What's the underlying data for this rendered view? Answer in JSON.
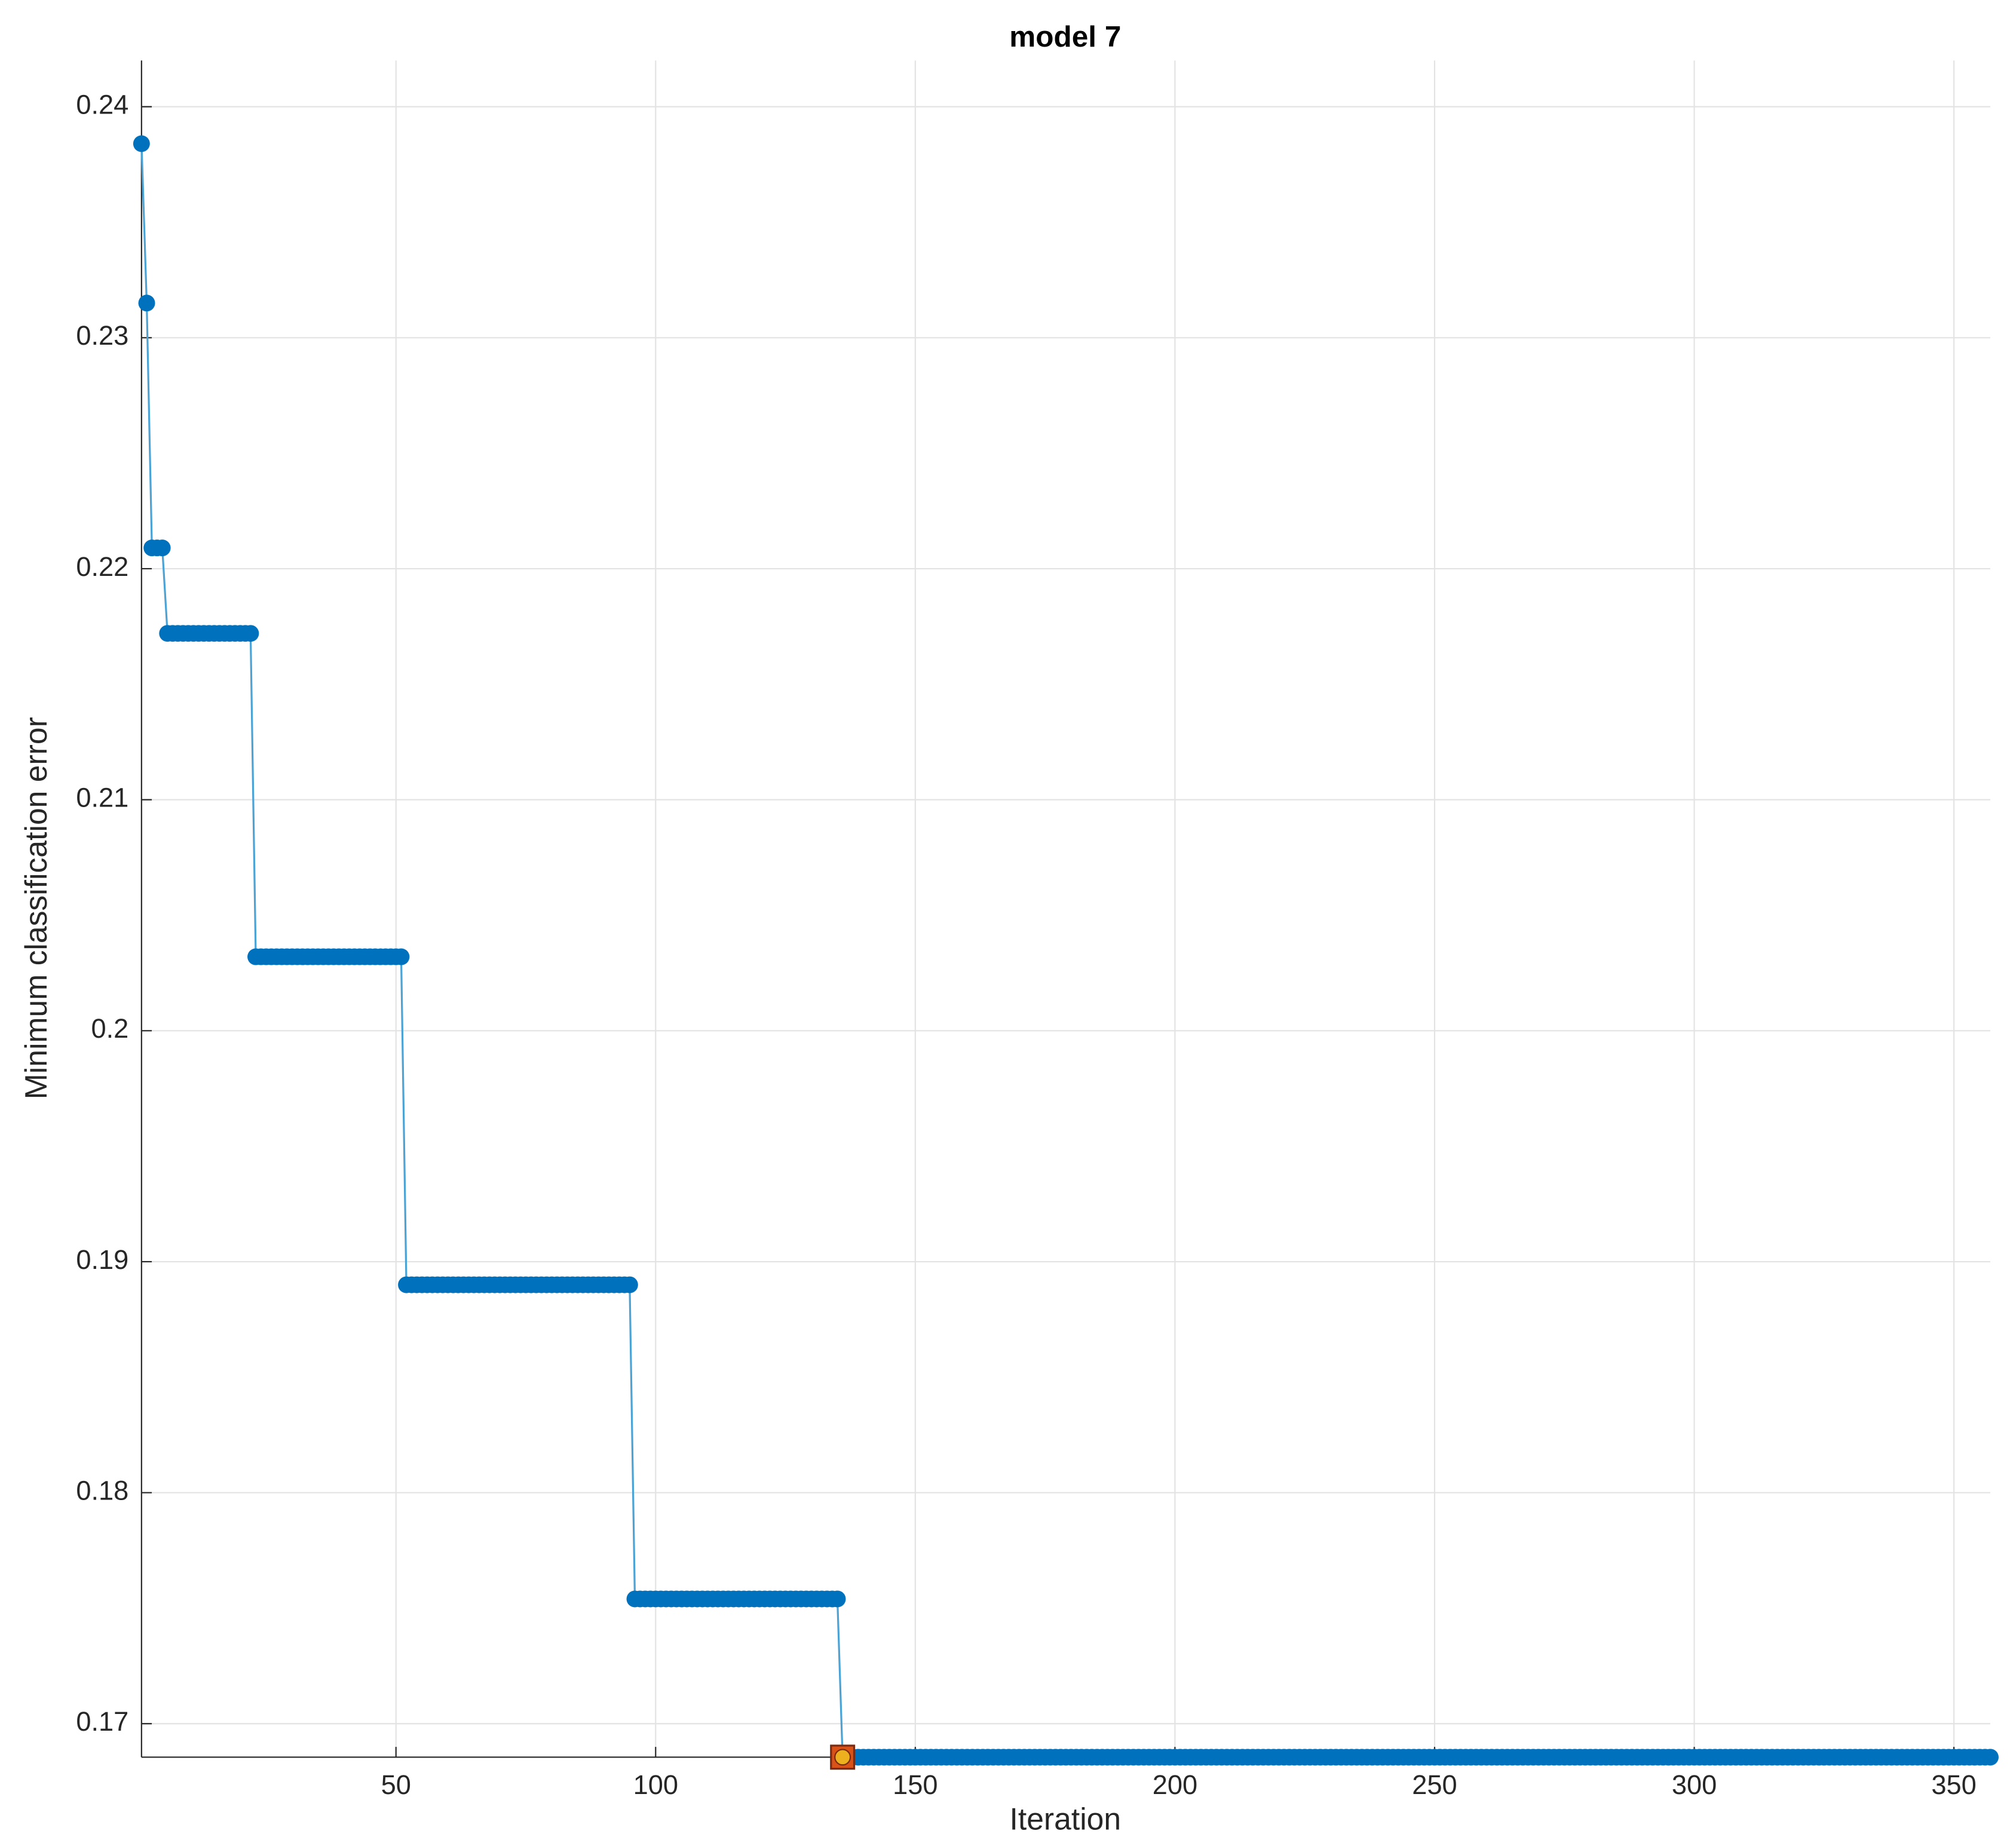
{
  "chart_data": {
    "type": "line",
    "title": "model 7",
    "xlabel": "Iteration",
    "ylabel": "Minimum classification error",
    "xlim": [
      1,
      357
    ],
    "ylim": [
      0.16855,
      0.242
    ],
    "xticks": [
      50,
      100,
      150,
      200,
      250,
      300,
      350
    ],
    "yticks": [
      0.17,
      0.18,
      0.19,
      0.2,
      0.21,
      0.22,
      0.23,
      0.24
    ],
    "grid": true,
    "highlight_x": 136,
    "highlight_color": "#edb120",
    "highlight_edge": "#d95319",
    "x": [
      1,
      2,
      3,
      4,
      5,
      6,
      7,
      8,
      9,
      10,
      11,
      12,
      13,
      14,
      15,
      16,
      17,
      18,
      19,
      20,
      21,
      22,
      23,
      24,
      25,
      26,
      27,
      28,
      29,
      30,
      31,
      32,
      33,
      34,
      35,
      36,
      37,
      38,
      39,
      40,
      41,
      42,
      43,
      44,
      45,
      46,
      47,
      48,
      49,
      50,
      51,
      52,
      53,
      54,
      55,
      56,
      57,
      58,
      59,
      60,
      61,
      62,
      63,
      64,
      65,
      66,
      67,
      68,
      69,
      70,
      71,
      72,
      73,
      74,
      75,
      76,
      77,
      78,
      79,
      80,
      81,
      82,
      83,
      84,
      85,
      86,
      87,
      88,
      89,
      90,
      91,
      92,
      93,
      94,
      95,
      96,
      97,
      98,
      99,
      100,
      101,
      102,
      103,
      104,
      105,
      106,
      107,
      108,
      109,
      110,
      111,
      112,
      113,
      114,
      115,
      116,
      117,
      118,
      119,
      120,
      121,
      122,
      123,
      124,
      125,
      126,
      127,
      128,
      129,
      130,
      131,
      132,
      133,
      134,
      135,
      136,
      137,
      138,
      139,
      140,
      141,
      142,
      143,
      144,
      145,
      146,
      147,
      148,
      149,
      150,
      151,
      152,
      153,
      154,
      155,
      156,
      157,
      158,
      159,
      160,
      161,
      162,
      163,
      164,
      165,
      166,
      167,
      168,
      169,
      170,
      171,
      172,
      173,
      174,
      175,
      176,
      177,
      178,
      179,
      180,
      181,
      182,
      183,
      184,
      185,
      186,
      187,
      188,
      189,
      190,
      191,
      192,
      193,
      194,
      195,
      196,
      197,
      198,
      199,
      200,
      201,
      202,
      203,
      204,
      205,
      206,
      207,
      208,
      209,
      210,
      211,
      212,
      213,
      214,
      215,
      216,
      217,
      218,
      219,
      220,
      221,
      222,
      223,
      224,
      225,
      226,
      227,
      228,
      229,
      230,
      231,
      232,
      233,
      234,
      235,
      236,
      237,
      238,
      239,
      240,
      241,
      242,
      243,
      244,
      245,
      246,
      247,
      248,
      249,
      250,
      251,
      252,
      253,
      254,
      255,
      256,
      257,
      258,
      259,
      260,
      261,
      262,
      263,
      264,
      265,
      266,
      267,
      268,
      269,
      270,
      271,
      272,
      273,
      274,
      275,
      276,
      277,
      278,
      279,
      280,
      281,
      282,
      283,
      284,
      285,
      286,
      287,
      288,
      289,
      290,
      291,
      292,
      293,
      294,
      295,
      296,
      297,
      298,
      299,
      300,
      301,
      302,
      303,
      304,
      305,
      306,
      307,
      308,
      309,
      310,
      311,
      312,
      313,
      314,
      315,
      316,
      317,
      318,
      319,
      320,
      321,
      322,
      323,
      324,
      325,
      326,
      327,
      328,
      329,
      330,
      331,
      332,
      333,
      334,
      335,
      336,
      337,
      338,
      339,
      340,
      341,
      342,
      343,
      344,
      345,
      346,
      347,
      348,
      349,
      350,
      351,
      352,
      353,
      354,
      355,
      356,
      357
    ],
    "series": [
      {
        "color": "#0072bd",
        "line_color": "#4da3d4",
        "values": [
          0.2384,
          0.2315,
          0.2209,
          0.2209,
          0.2209,
          0.2172,
          0.2172,
          0.2172,
          0.2172,
          0.2172,
          0.2172,
          0.2172,
          0.2172,
          0.2172,
          0.2172,
          0.2172,
          0.2172,
          0.2172,
          0.2172,
          0.2172,
          0.2172,
          0.2172,
          0.2032,
          0.2032,
          0.2032,
          0.2032,
          0.2032,
          0.2032,
          0.2032,
          0.2032,
          0.2032,
          0.2032,
          0.2032,
          0.2032,
          0.2032,
          0.2032,
          0.2032,
          0.2032,
          0.2032,
          0.2032,
          0.2032,
          0.2032,
          0.2032,
          0.2032,
          0.2032,
          0.2032,
          0.2032,
          0.2032,
          0.2032,
          0.2032,
          0.2032,
          0.189,
          0.189,
          0.189,
          0.189,
          0.189,
          0.189,
          0.189,
          0.189,
          0.189,
          0.189,
          0.189,
          0.189,
          0.189,
          0.189,
          0.189,
          0.189,
          0.189,
          0.189,
          0.189,
          0.189,
          0.189,
          0.189,
          0.189,
          0.189,
          0.189,
          0.189,
          0.189,
          0.189,
          0.189,
          0.189,
          0.189,
          0.189,
          0.189,
          0.189,
          0.189,
          0.189,
          0.189,
          0.189,
          0.189,
          0.189,
          0.189,
          0.189,
          0.189,
          0.189,
          0.1754,
          0.1754,
          0.1754,
          0.1754,
          0.1754,
          0.1754,
          0.1754,
          0.1754,
          0.1754,
          0.1754,
          0.1754,
          0.1754,
          0.1754,
          0.1754,
          0.1754,
          0.1754,
          0.1754,
          0.1754,
          0.1754,
          0.1754,
          0.1754,
          0.1754,
          0.1754,
          0.1754,
          0.1754,
          0.1754,
          0.1754,
          0.1754,
          0.1754,
          0.1754,
          0.1754,
          0.1754,
          0.1754,
          0.1754,
          0.1754,
          0.1754,
          0.1754,
          0.1754,
          0.1754,
          0.1754,
          0.16855,
          0.16855,
          0.16855,
          0.16855,
          0.16855,
          0.16855,
          0.16855,
          0.16855,
          0.16855,
          0.16855,
          0.16855,
          0.16855,
          0.16855,
          0.16855,
          0.16855,
          0.16855,
          0.16855,
          0.16855,
          0.16855,
          0.16855,
          0.16855,
          0.16855,
          0.16855,
          0.16855,
          0.16855,
          0.16855,
          0.16855,
          0.16855,
          0.16855,
          0.16855,
          0.16855,
          0.16855,
          0.16855,
          0.16855,
          0.16855,
          0.16855,
          0.16855,
          0.16855,
          0.16855,
          0.16855,
          0.16855,
          0.16855,
          0.16855,
          0.16855,
          0.16855,
          0.16855,
          0.16855,
          0.16855,
          0.16855,
          0.16855,
          0.16855,
          0.16855,
          0.16855,
          0.16855,
          0.16855,
          0.16855,
          0.16855,
          0.16855,
          0.16855,
          0.16855,
          0.16855,
          0.16855,
          0.16855,
          0.16855,
          0.16855,
          0.16855,
          0.16855,
          0.16855,
          0.16855,
          0.16855,
          0.16855,
          0.16855,
          0.16855,
          0.16855,
          0.16855,
          0.16855,
          0.16855,
          0.16855,
          0.16855,
          0.16855,
          0.16855,
          0.16855,
          0.16855,
          0.16855,
          0.16855,
          0.16855,
          0.16855,
          0.16855,
          0.16855,
          0.16855,
          0.16855,
          0.16855,
          0.16855,
          0.16855,
          0.16855,
          0.16855,
          0.16855,
          0.16855,
          0.16855,
          0.16855,
          0.16855,
          0.16855,
          0.16855,
          0.16855,
          0.16855,
          0.16855,
          0.16855,
          0.16855,
          0.16855,
          0.16855,
          0.16855,
          0.16855,
          0.16855,
          0.16855,
          0.16855,
          0.16855,
          0.16855,
          0.16855,
          0.16855,
          0.16855,
          0.16855,
          0.16855,
          0.16855,
          0.16855,
          0.16855,
          0.16855,
          0.16855,
          0.16855,
          0.16855,
          0.16855,
          0.16855,
          0.16855,
          0.16855,
          0.16855,
          0.16855,
          0.16855,
          0.16855,
          0.16855,
          0.16855,
          0.16855,
          0.16855,
          0.16855,
          0.16855,
          0.16855,
          0.16855,
          0.16855,
          0.16855,
          0.16855,
          0.16855,
          0.16855,
          0.16855,
          0.16855,
          0.16855,
          0.16855,
          0.16855,
          0.16855,
          0.16855,
          0.16855,
          0.16855,
          0.16855,
          0.16855,
          0.16855,
          0.16855,
          0.16855,
          0.16855,
          0.16855,
          0.16855,
          0.16855,
          0.16855,
          0.16855,
          0.16855,
          0.16855,
          0.16855,
          0.16855,
          0.16855,
          0.16855,
          0.16855,
          0.16855,
          0.16855,
          0.16855,
          0.16855,
          0.16855,
          0.16855,
          0.16855,
          0.16855,
          0.16855,
          0.16855,
          0.16855,
          0.16855,
          0.16855,
          0.16855,
          0.16855,
          0.16855,
          0.16855,
          0.16855,
          0.16855,
          0.16855,
          0.16855,
          0.16855,
          0.16855,
          0.16855,
          0.16855,
          0.16855,
          0.16855,
          0.16855,
          0.16855,
          0.16855,
          0.16855,
          0.16855,
          0.16855,
          0.16855,
          0.16855,
          0.16855,
          0.16855,
          0.16855,
          0.16855,
          0.16855,
          0.16855,
          0.16855,
          0.16855,
          0.16855,
          0.16855
        ]
      }
    ]
  }
}
